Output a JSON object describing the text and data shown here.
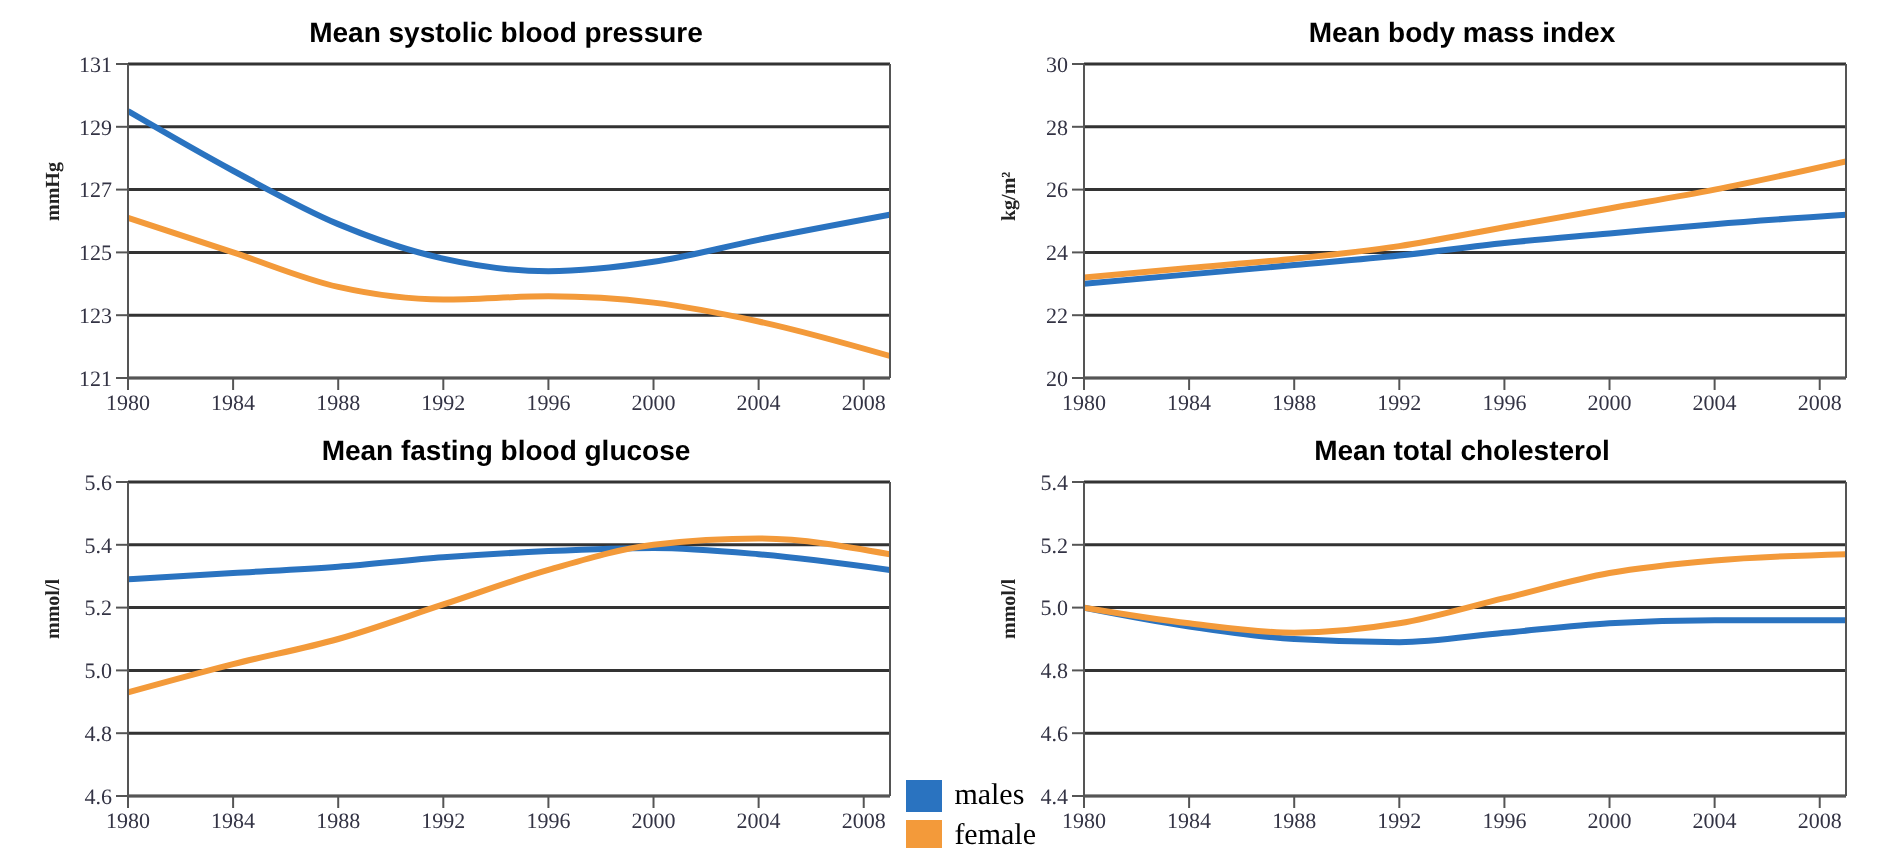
{
  "chart_data": [
    {
      "type": "line",
      "title": "Mean systolic blood pressure",
      "ylabel": "mmHg",
      "x": [
        1980,
        1984,
        1988,
        1992,
        1996,
        2000,
        2004,
        2009
      ],
      "xlim": [
        1980,
        2009
      ],
      "xticks": [
        1980,
        1984,
        1988,
        1992,
        1996,
        2000,
        2004,
        2008
      ],
      "ylim": [
        121,
        131
      ],
      "yticks": [
        121,
        123,
        125,
        127,
        129,
        131
      ],
      "grid": "y",
      "series": [
        {
          "color": "#2a73c0",
          "values": [
            129.5,
            127.6,
            125.9,
            124.8,
            124.4,
            124.7,
            125.4,
            126.2
          ]
        },
        {
          "color": "#f39a3a",
          "values": [
            126.1,
            125.0,
            123.9,
            123.5,
            123.6,
            123.4,
            122.8,
            121.7
          ]
        }
      ]
    },
    {
      "type": "line",
      "title": "Mean body mass index",
      "ylabel": "kg/m²",
      "x": [
        1980,
        1984,
        1988,
        1992,
        1996,
        2000,
        2004,
        2009
      ],
      "xlim": [
        1980,
        2009
      ],
      "xticks": [
        1980,
        1984,
        1988,
        1992,
        1996,
        2000,
        2004,
        2008
      ],
      "ylim": [
        20,
        30
      ],
      "yticks": [
        20,
        22,
        24,
        26,
        28,
        30
      ],
      "grid": "y",
      "series": [
        {
          "color": "#2a73c0",
          "values": [
            23.0,
            23.3,
            23.6,
            23.9,
            24.3,
            24.6,
            24.9,
            25.2
          ]
        },
        {
          "color": "#f39a3a",
          "values": [
            23.2,
            23.5,
            23.8,
            24.2,
            24.8,
            25.4,
            26.0,
            26.9
          ]
        }
      ]
    },
    {
      "type": "line",
      "title": "Mean fasting blood glucose",
      "ylabel": "mmol/l",
      "x": [
        1980,
        1984,
        1988,
        1992,
        1996,
        2000,
        2004,
        2009
      ],
      "xlim": [
        1980,
        2009
      ],
      "xticks": [
        1980,
        1984,
        1988,
        1992,
        1996,
        2000,
        2004,
        2008
      ],
      "ylim": [
        4.6,
        5.6
      ],
      "yticks": [
        4.6,
        4.8,
        {
          "value": 5,
          "label": "5.0"
        },
        5.2,
        5.4,
        5.6
      ],
      "grid": "y",
      "legend": "bottom right",
      "series": [
        {
          "name": "males",
          "color": "#2a73c0",
          "values": [
            5.29,
            5.31,
            5.33,
            5.36,
            5.38,
            5.39,
            5.37,
            5.32
          ]
        },
        {
          "name": "female",
          "color": "#f39a3a",
          "values": [
            4.93,
            5.02,
            5.1,
            5.21,
            5.32,
            5.4,
            5.42,
            5.37
          ]
        }
      ]
    },
    {
      "type": "line",
      "title": "Mean total cholesterol",
      "ylabel": "mmol/l",
      "x": [
        1980,
        1984,
        1988,
        1992,
        1996,
        2000,
        2004,
        2009
      ],
      "xlim": [
        1980,
        2009
      ],
      "xticks": [
        1980,
        1984,
        1988,
        1992,
        1996,
        2000,
        2004,
        2008
      ],
      "ylim": [
        4.4,
        5.4
      ],
      "yticks": [
        4.4,
        4.6,
        4.8,
        {
          "value": 5,
          "label": "5.0"
        },
        5.2,
        5.4
      ],
      "grid": "y",
      "series": [
        {
          "color": "#2a73c0",
          "values": [
            5.0,
            4.94,
            4.9,
            4.89,
            4.92,
            4.95,
            4.96,
            4.96
          ]
        },
        {
          "color": "#f39a3a",
          "values": [
            5.0,
            4.95,
            4.92,
            4.95,
            5.03,
            5.11,
            5.15,
            5.17
          ]
        }
      ]
    }
  ]
}
